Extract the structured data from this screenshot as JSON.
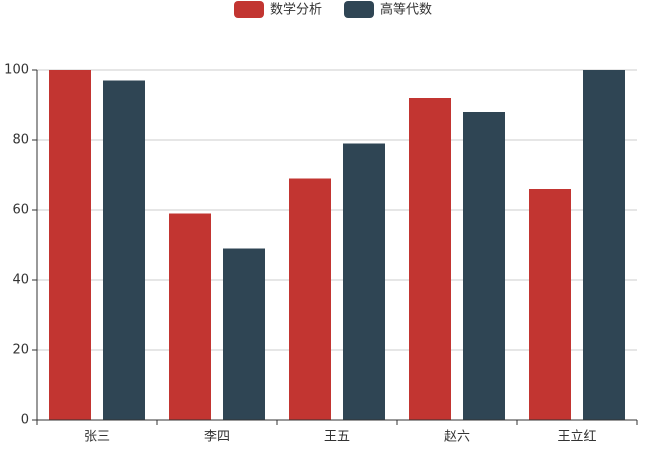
{
  "chart_data": {
    "type": "bar",
    "categories": [
      "张三",
      "李四",
      "王五",
      "赵六",
      "王立红"
    ],
    "series": [
      {
        "name": "数学分析",
        "color": "#c23531",
        "values": [
          100,
          59,
          69,
          92,
          66
        ]
      },
      {
        "name": "高等代数",
        "color": "#2f4554",
        "values": [
          97,
          49,
          79,
          88,
          100
        ]
      }
    ],
    "ylim": [
      0,
      100
    ],
    "yticks": [
      0,
      20,
      40,
      60,
      80,
      100
    ],
    "grid": true,
    "legend": "top"
  }
}
